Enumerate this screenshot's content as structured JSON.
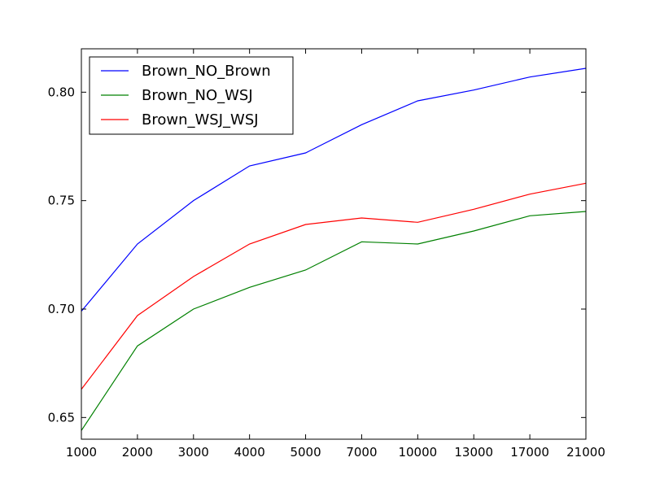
{
  "chart_data": {
    "type": "line",
    "title": "",
    "xlabel": "",
    "ylabel": "",
    "categories": [
      "1000",
      "2000",
      "3000",
      "4000",
      "5000",
      "7000",
      "10000",
      "13000",
      "17000",
      "21000"
    ],
    "ylim": [
      0.64,
      0.82
    ],
    "yticks": [
      "0.65",
      "0.70",
      "0.75",
      "0.80"
    ],
    "grid": false,
    "legend_position": "top-left",
    "series": [
      {
        "name": "Brown_NO_Brown",
        "color": "#0000ff",
        "values": [
          0.699,
          0.73,
          0.75,
          0.766,
          0.772,
          0.785,
          0.796,
          0.801,
          0.807,
          0.811
        ]
      },
      {
        "name": "Brown_NO_WSJ",
        "color": "#008000",
        "values": [
          0.644,
          0.683,
          0.7,
          0.71,
          0.718,
          0.731,
          0.73,
          0.736,
          0.743,
          0.745
        ]
      },
      {
        "name": "Brown_WSJ_WSJ",
        "color": "#ff0000",
        "values": [
          0.663,
          0.697,
          0.715,
          0.73,
          0.739,
          0.742,
          0.74,
          0.746,
          0.753,
          0.758
        ]
      }
    ]
  }
}
